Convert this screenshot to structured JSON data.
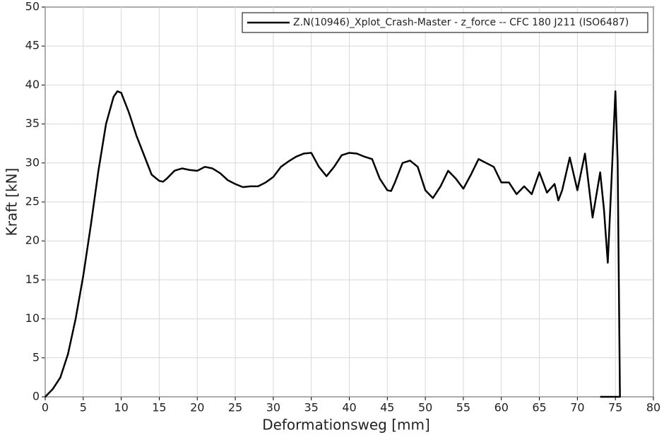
{
  "chart_data": {
    "type": "line",
    "xlabel": "Deformationsweg [mm]",
    "ylabel": "Kraft  [kN]",
    "xlim": [
      0,
      80
    ],
    "ylim": [
      0,
      50
    ],
    "xticks": [
      0,
      5,
      10,
      15,
      20,
      25,
      30,
      35,
      40,
      45,
      50,
      55,
      60,
      65,
      70,
      75,
      80
    ],
    "yticks": [
      0,
      5,
      10,
      15,
      20,
      25,
      30,
      35,
      40,
      45,
      50
    ],
    "grid": true,
    "legend": "upper right",
    "x": [
      0,
      1,
      2,
      3,
      4,
      5,
      6,
      7,
      8,
      9,
      9.5,
      10,
      11,
      12,
      13,
      14,
      15,
      15.5,
      16,
      17,
      18,
      19,
      20,
      21,
      22,
      23,
      24,
      25,
      26,
      27,
      28,
      29,
      30,
      31,
      32,
      33,
      34,
      35,
      36,
      37,
      38,
      39,
      40,
      41,
      42,
      43,
      44,
      45,
      45.5,
      46,
      47,
      48,
      49,
      50,
      51,
      52,
      53,
      54,
      55,
      56,
      57,
      58,
      59,
      60,
      61,
      62,
      63,
      64,
      65,
      66,
      67,
      67.5,
      68,
      69,
      70,
      71,
      72,
      73,
      73.5,
      74,
      74.5,
      75,
      75.3,
      75.6,
      73
    ],
    "series": [
      {
        "name": "Z.N(10946)_Xplot_Crash-Master - z_force -- CFC 180 J211 (ISO6487)",
        "color": "#000000",
        "values": [
          0,
          1,
          2.5,
          5.5,
          10,
          15.5,
          22,
          29,
          35,
          38.5,
          39.2,
          39,
          36.5,
          33.5,
          31,
          28.5,
          27.7,
          27.6,
          28,
          29,
          29.3,
          29.1,
          29,
          29.5,
          29.3,
          28.7,
          27.8,
          27.3,
          26.9,
          27,
          27,
          27.5,
          28.2,
          29.5,
          30.2,
          30.8,
          31.2,
          31.3,
          29.5,
          28.3,
          29.5,
          31,
          31.3,
          31.2,
          30.8,
          30.5,
          28,
          26.5,
          26.4,
          27.5,
          30,
          30.3,
          29.5,
          26.5,
          25.5,
          27,
          29,
          28,
          26.7,
          28.5,
          30.5,
          30,
          29.5,
          27.5,
          27.5,
          26,
          27,
          26,
          28.8,
          26.2,
          27.3,
          25.2,
          26.5,
          30.7,
          26.5,
          31.2,
          23,
          28.8,
          24,
          17.2,
          28,
          39.2,
          30,
          0,
          0
        ]
      }
    ]
  }
}
